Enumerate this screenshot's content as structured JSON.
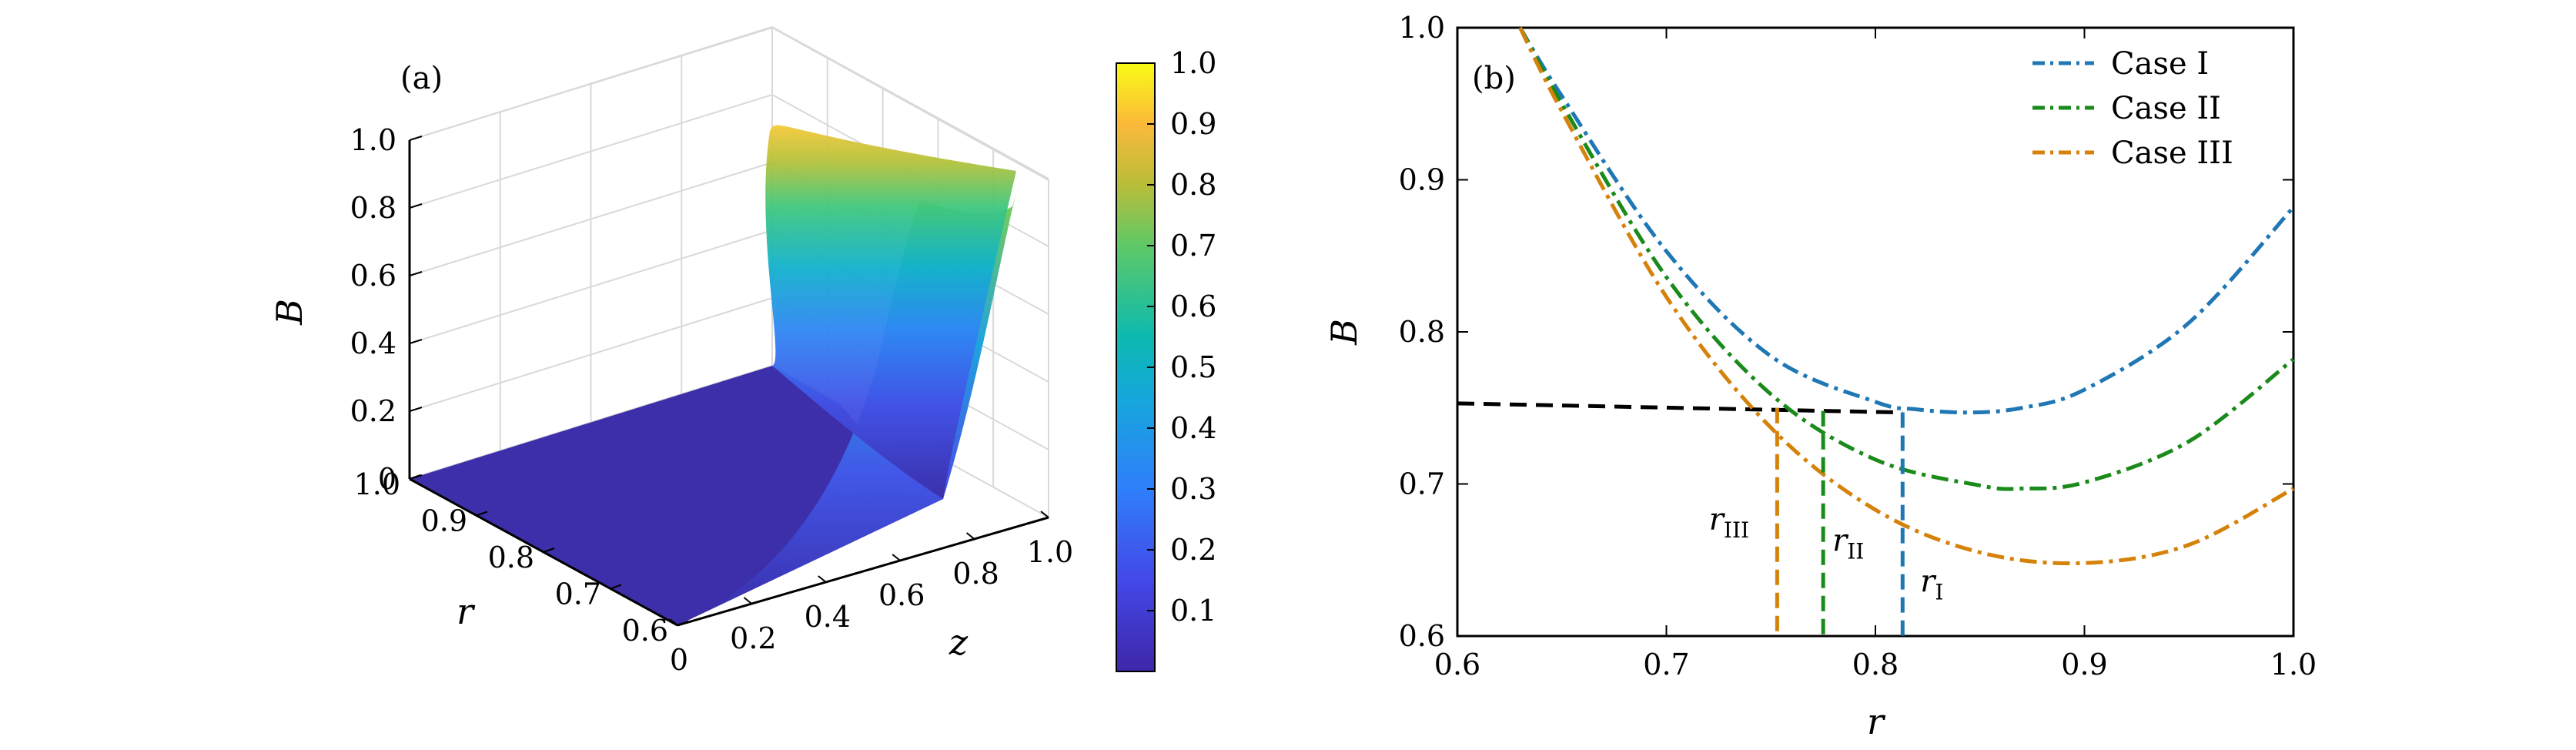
{
  "colors": {
    "case1": "#1f77b4",
    "case2": "#1a8a1a",
    "case3": "#d4820a",
    "ref": "#000000"
  },
  "chart_data": [
    {
      "type": "surface",
      "panel_label": "(a)",
      "title": "",
      "xlabel": "z",
      "ylabel": "r",
      "zlabel": "B",
      "xlim": [
        0,
        1
      ],
      "ylim": [
        0.6,
        1.0
      ],
      "zlim": [
        0,
        1
      ],
      "x_ticks": [
        "0",
        "0.2",
        "0.4",
        "0.6",
        "0.8",
        "1.0"
      ],
      "y_ticks": [
        "1.0",
        "0.9",
        "0.8",
        "0.7",
        "0.6"
      ],
      "z_ticks": [
        "0",
        "0.2",
        "0.4",
        "0.6",
        "0.8",
        "1.0"
      ],
      "grid": true,
      "colormap": "parula",
      "colorbar": {
        "ticks": [
          "0.1",
          "0.2",
          "0.3",
          "0.4",
          "0.5",
          "0.6",
          "0.7",
          "0.8",
          "0.9",
          "1.0"
        ],
        "range": [
          0,
          1
        ]
      },
      "surface_summary": {
        "edge_z1": [
          {
            "r": 1.0,
            "B": 0.94
          },
          {
            "r": 0.9,
            "B": 0.78
          },
          {
            "r": 0.85,
            "B": 0.77
          },
          {
            "r": 0.8,
            "B": 0.79
          },
          {
            "r": 0.7,
            "B": 0.85
          },
          {
            "r": 0.6,
            "B": 0.93
          }
        ],
        "note_values": {
          "B_at_z0": 0.0,
          "B_at_z05": 0.02,
          "B_at_z075": 0.3
        }
      }
    },
    {
      "type": "line",
      "panel_label": "(b)",
      "title": "",
      "xlabel": "r",
      "ylabel": "B",
      "xlim": [
        0.6,
        1.0
      ],
      "ylim": [
        0.6,
        1.0
      ],
      "x_ticks": [
        "0.6",
        "0.7",
        "0.8",
        "0.9",
        "1.0"
      ],
      "y_ticks": [
        "0.6",
        "0.7",
        "0.8",
        "0.9",
        "1.0"
      ],
      "legend_position": "top-right",
      "series": [
        {
          "name": "Case I",
          "color_key": "case1",
          "style": "dashdot",
          "x": [
            0.63,
            0.65,
            0.7,
            0.75,
            0.8,
            0.82,
            0.845,
            0.87,
            0.9,
            0.95,
            1.0
          ],
          "y": [
            1.0,
            0.955,
            0.853,
            0.784,
            0.754,
            0.749,
            0.747,
            0.75,
            0.762,
            0.806,
            0.882
          ]
        },
        {
          "name": "Case II",
          "color_key": "case2",
          "style": "dashdot",
          "x": [
            0.63,
            0.65,
            0.7,
            0.75,
            0.8,
            0.85,
            0.87,
            0.9,
            0.95,
            1.0
          ],
          "y": [
            1.0,
            0.95,
            0.836,
            0.759,
            0.716,
            0.699,
            0.697,
            0.701,
            0.728,
            0.782
          ]
        },
        {
          "name": "Case III",
          "color_key": "case3",
          "style": "dashdot",
          "x": [
            0.63,
            0.65,
            0.7,
            0.75,
            0.8,
            0.85,
            0.9,
            0.95,
            1.0
          ],
          "y": [
            1.0,
            0.945,
            0.823,
            0.737,
            0.683,
            0.655,
            0.648,
            0.66,
            0.697
          ]
        }
      ],
      "reference_line": {
        "style": "dashed",
        "color_key": "ref",
        "points": [
          {
            "x": 0.6,
            "y": 0.753
          },
          {
            "x": 0.813,
            "y": 0.747
          }
        ]
      },
      "markers": [
        {
          "label": "r",
          "sub": "III",
          "x": 0.753,
          "y_top": 0.75,
          "color_key": "case3",
          "label_at": {
            "x": 0.73,
            "y": 0.67
          }
        },
        {
          "label": "r",
          "sub": "II",
          "x": 0.775,
          "y_top": 0.748,
          "color_key": "case2",
          "label_at": {
            "x": 0.787,
            "y": 0.656
          }
        },
        {
          "label": "r",
          "sub": "I",
          "x": 0.813,
          "y_top": 0.747,
          "color_key": "case1",
          "label_at": {
            "x": 0.827,
            "y": 0.629
          }
        }
      ]
    }
  ]
}
